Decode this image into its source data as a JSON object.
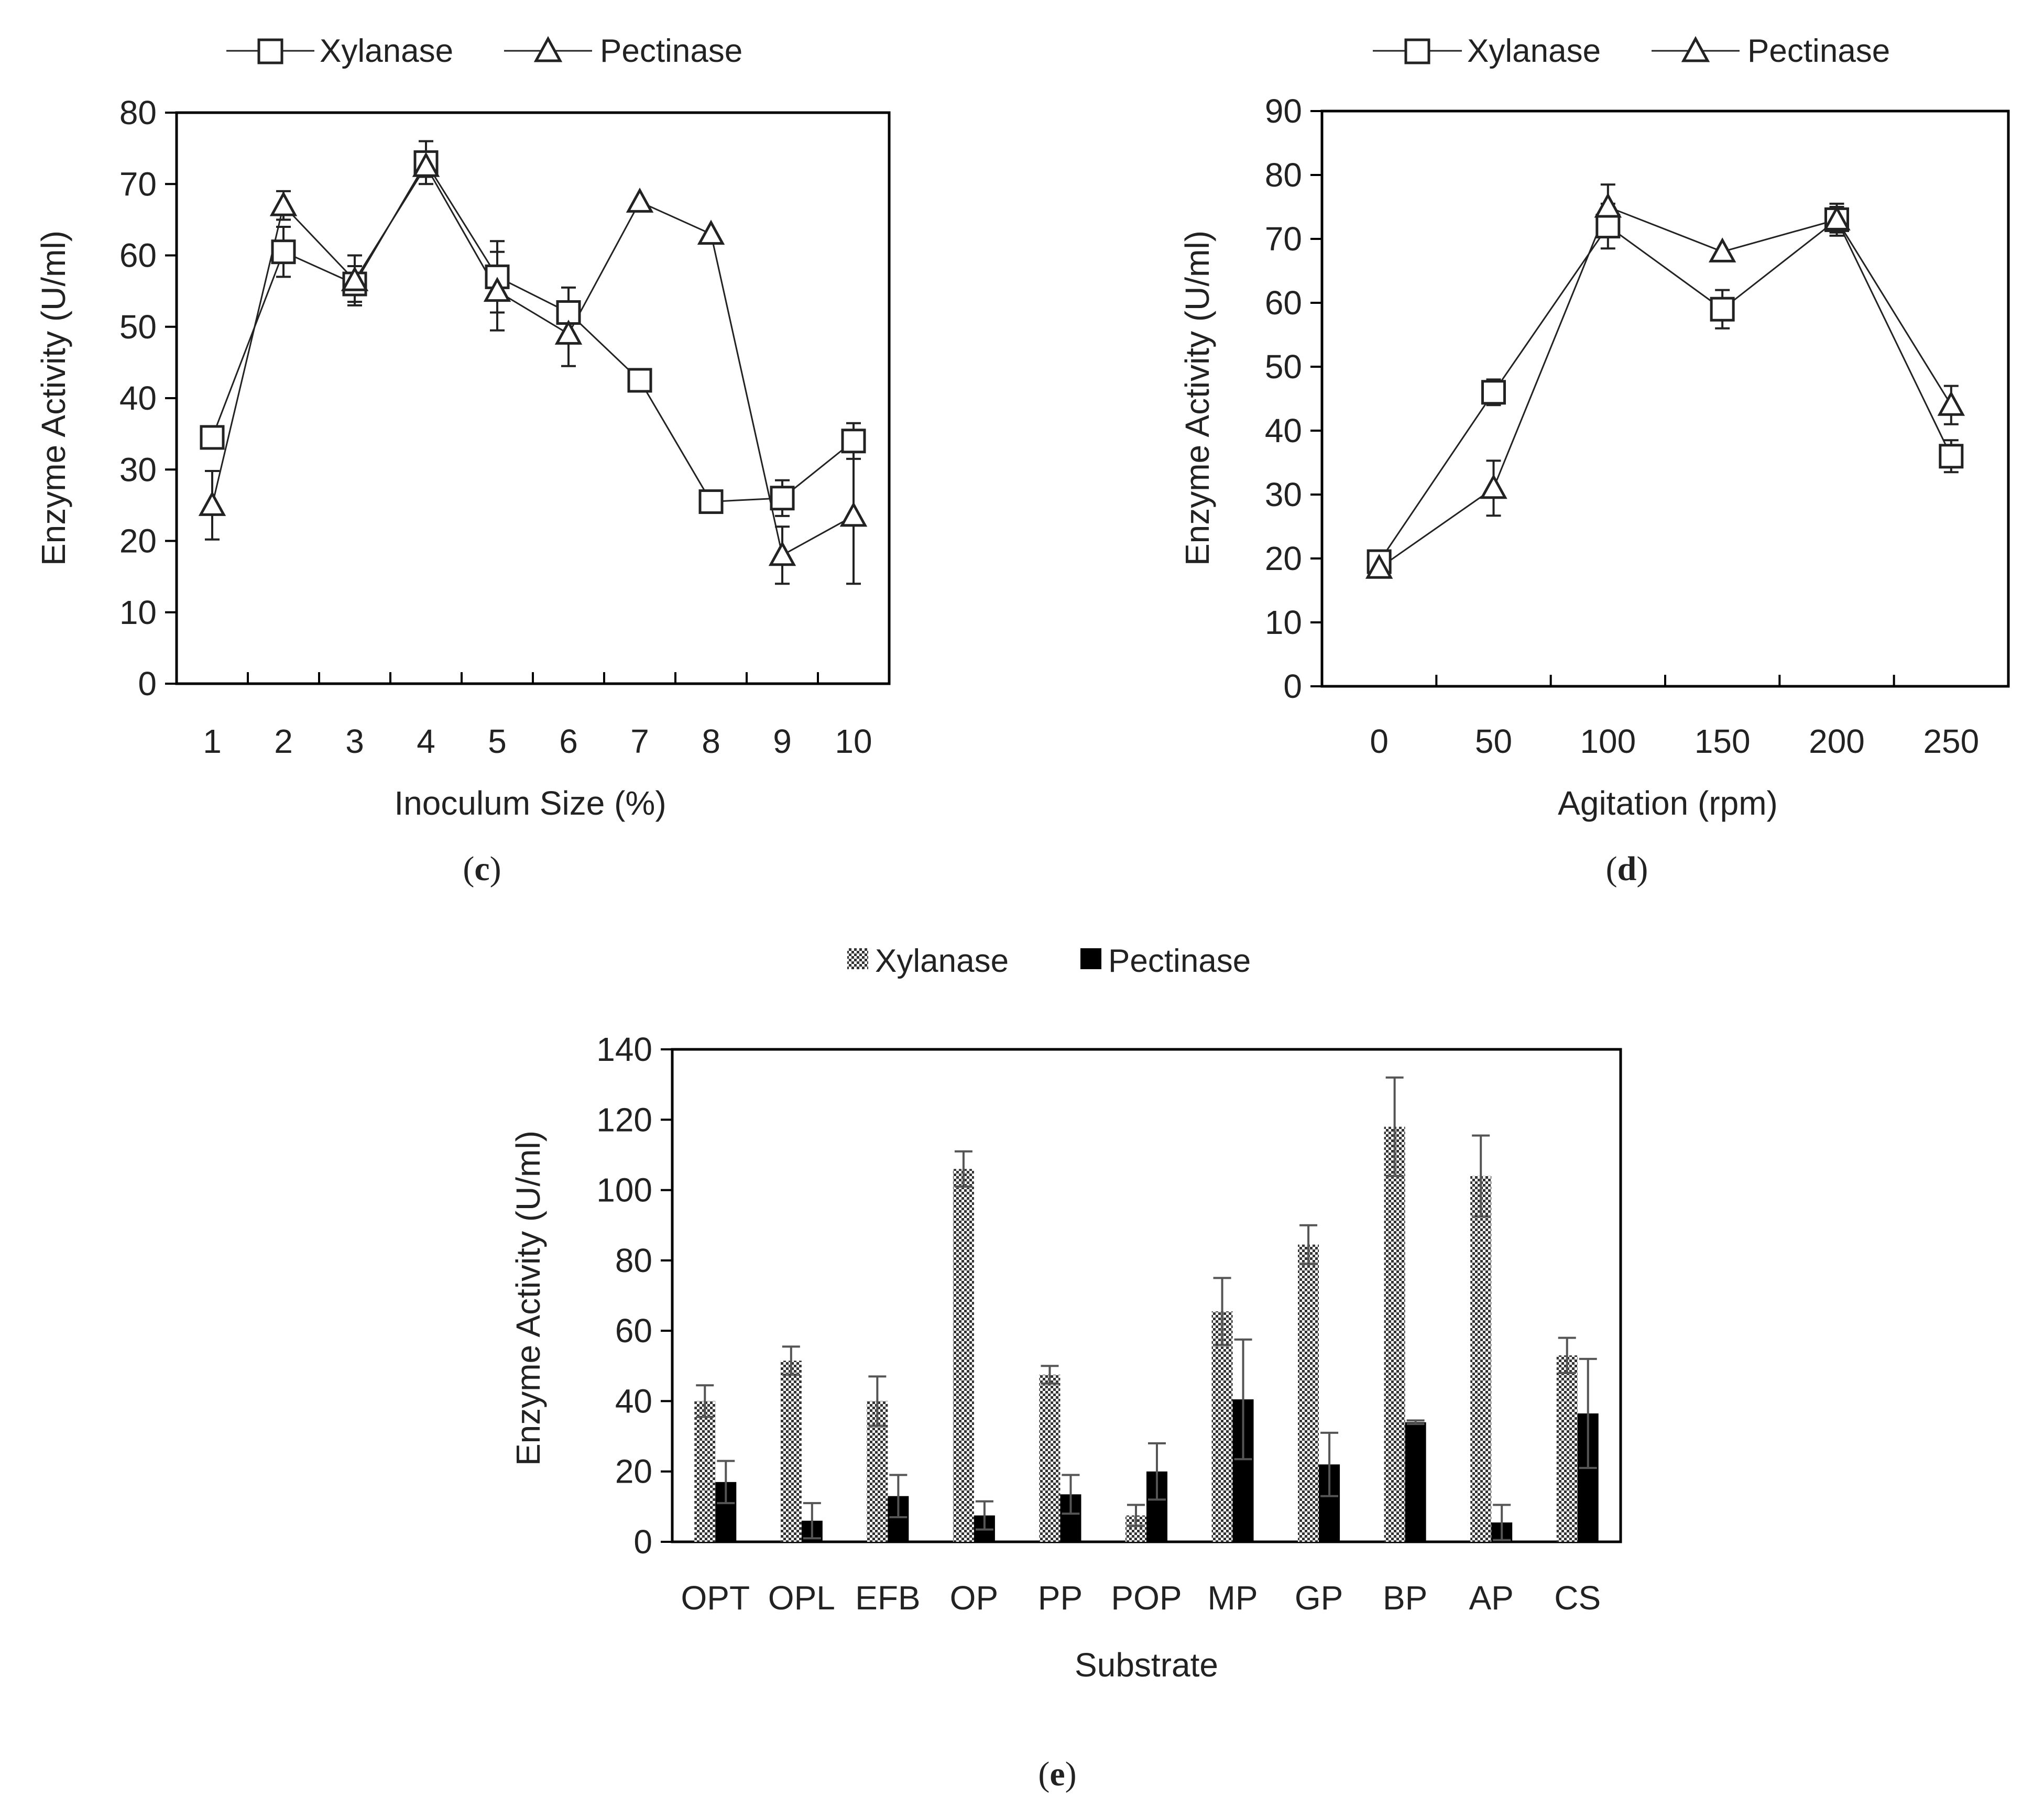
{
  "chart_data": [
    {
      "type": "line",
      "panel_label": "(",
      "panel_letter": "c",
      "panel_label_close": ")",
      "title": "",
      "xlabel": "Inoculum Size (%)",
      "ylabel": "Enzyme Activity (U/ml)",
      "ylim": [
        0,
        80
      ],
      "yticks": [
        "0",
        "10",
        "20",
        "30",
        "40",
        "50",
        "60",
        "70",
        "80"
      ],
      "categories": [
        "1",
        "2",
        "3",
        "4",
        "5",
        "6",
        "7",
        "8",
        "9",
        "10"
      ],
      "legend_position": "top",
      "grid": false,
      "series": [
        {
          "name": "Xylanase",
          "marker": "square",
          "values": [
            34.5,
            60.5,
            56,
            73,
            57,
            52,
            42.5,
            25.5,
            26,
            34
          ],
          "errors": [
            null,
            3.5,
            2.5,
            3,
            5,
            3.5,
            null,
            null,
            2.5,
            2.5
          ]
        },
        {
          "name": "Pectinase",
          "marker": "triangle",
          "values": [
            25,
            67,
            56.5,
            72.5,
            55,
            49,
            67.5,
            63,
            18,
            23.5
          ],
          "errors": [
            4.8,
            2,
            3.5,
            1.5,
            5.5,
            4.5,
            null,
            null,
            4,
            9.5
          ]
        }
      ]
    },
    {
      "type": "line",
      "panel_label": "(",
      "panel_letter": "d",
      "panel_label_close": ")",
      "title": "",
      "xlabel": "Agitation (rpm)",
      "ylabel": "Enzyme Activity (U/ml)",
      "ylim": [
        0,
        90
      ],
      "yticks": [
        "0",
        "10",
        "20",
        "30",
        "40",
        "50",
        "60",
        "70",
        "80",
        "90"
      ],
      "categories": [
        "0",
        "50",
        "100",
        "150",
        "200",
        "250"
      ],
      "legend_position": "top",
      "grid": false,
      "series": [
        {
          "name": "Xylanase",
          "marker": "square",
          "values": [
            19.5,
            46,
            72,
            59,
            73,
            36
          ],
          "errors": [
            1.5,
            2,
            3.5,
            3,
            2,
            2.5
          ]
        },
        {
          "name": "Pectinase",
          "marker": "triangle",
          "values": [
            18.5,
            31,
            75,
            68,
            73,
            44
          ],
          "errors": [
            null,
            4.3,
            3.5,
            null,
            2.5,
            3
          ]
        }
      ]
    },
    {
      "type": "bar",
      "panel_label": "(",
      "panel_letter": "e",
      "panel_label_close": ")",
      "title": "",
      "xlabel": "Substrate",
      "ylabel": "Enzyme Activity (U/ml)",
      "ylim": [
        0,
        140
      ],
      "yticks": [
        "0",
        "20",
        "40",
        "60",
        "80",
        "100",
        "120",
        "140"
      ],
      "categories": [
        "OPT",
        "OPL",
        "EFB",
        "OP",
        "PP",
        "POP",
        "MP",
        "GP",
        "BP",
        "AP",
        "CS"
      ],
      "legend_position": "top",
      "grid": false,
      "series": [
        {
          "name": "Xylanase",
          "pattern": "checkered",
          "values": [
            40,
            51.5,
            40,
            106,
            47.5,
            7.5,
            65.5,
            84.5,
            118,
            104,
            53
          ],
          "errors": [
            4.5,
            4,
            7,
            5,
            2.5,
            3,
            9.5,
            5.5,
            14,
            11.5,
            5
          ]
        },
        {
          "name": "Pectinase",
          "pattern": "solid",
          "values": [
            17,
            6,
            13,
            7.5,
            13.5,
            20,
            40.5,
            22,
            34,
            5.5,
            36.5
          ],
          "errors": [
            6,
            5,
            6,
            4,
            5.5,
            8,
            17,
            9,
            0.5,
            5,
            15.5
          ]
        }
      ]
    }
  ]
}
